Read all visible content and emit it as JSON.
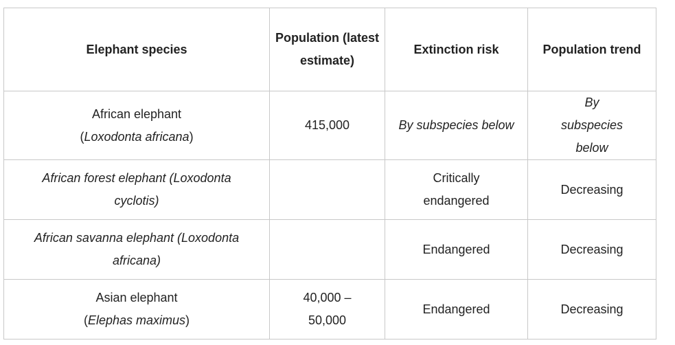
{
  "table": {
    "headers": [
      "Elephant species",
      "Population (latest estimate)",
      "Extinction risk",
      "Population trend"
    ],
    "rows": [
      {
        "species_common": "African elephant",
        "species_scientific": "Loxodonta africana",
        "population": "415,000",
        "risk": "By subspecies below",
        "trend": "By subspecies below"
      },
      {
        "species_full": "African forest elephant (Loxodonta cyclotis)",
        "population": "",
        "risk": "Critically endangered",
        "trend": "Decreasing"
      },
      {
        "species_full": "African savanna elephant (Loxodonta africana)",
        "population": "",
        "risk": "Endangered",
        "trend": "Decreasing"
      },
      {
        "species_common": "Asian elephant",
        "species_scientific": "Elephas maximus",
        "population": "40,000 – 50,000",
        "risk": "Endangered",
        "trend": "Decreasing"
      }
    ]
  }
}
